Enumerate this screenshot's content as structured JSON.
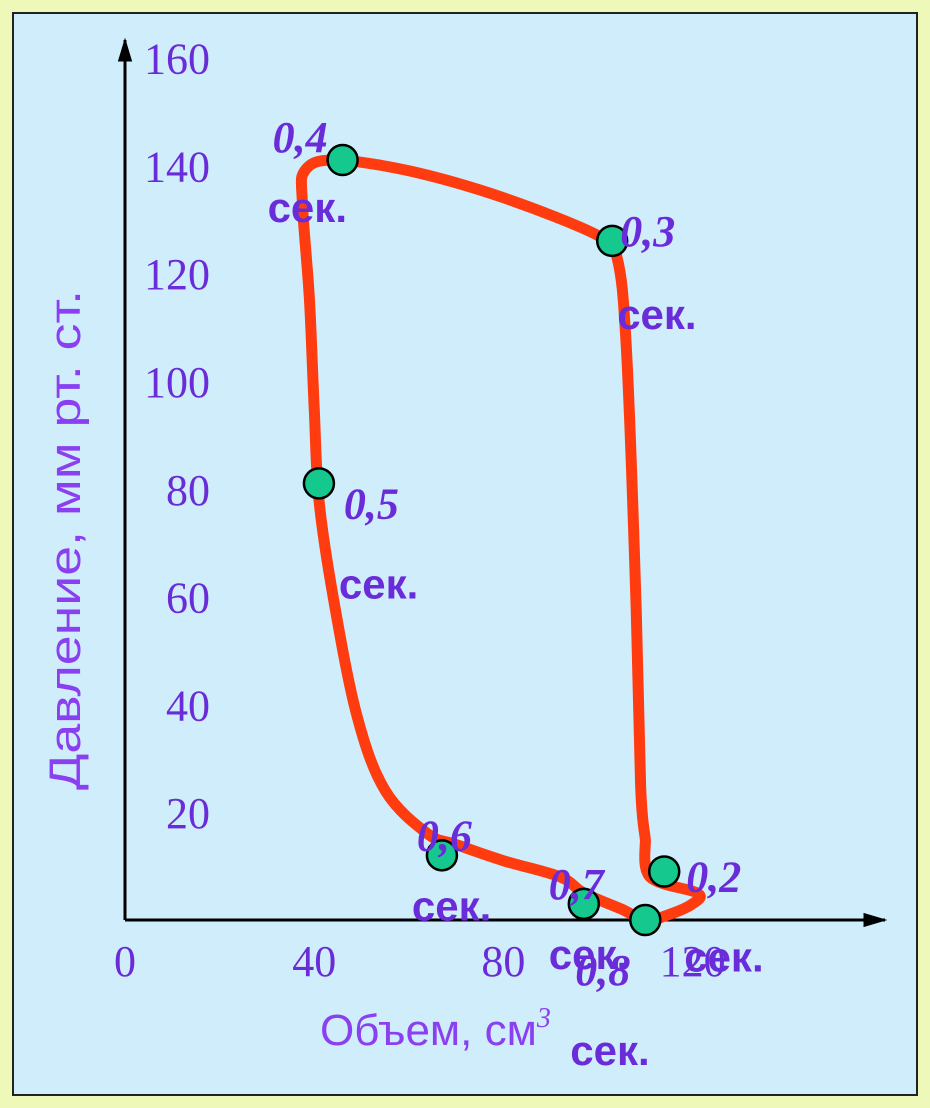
{
  "chart_data": {
    "type": "line",
    "xlabel": "Объем, см",
    "xlabel_sup": "3",
    "ylabel": "Давление, мм рт. ст.",
    "xlim": [
      0,
      140
    ],
    "ylim": [
      0,
      160
    ],
    "x_ticks": [
      "0",
      "40",
      "80",
      "120"
    ],
    "y_ticks": [
      "20",
      "40",
      "60",
      "80",
      "100",
      "120",
      "140",
      "160"
    ],
    "series": [
      {
        "color": "#ff3c10",
        "points": [
          [
            110,
            15
          ],
          [
            111,
            8
          ],
          [
            121,
            5
          ],
          [
            120,
            3
          ],
          [
            115,
            1
          ],
          [
            110,
            0
          ],
          [
            105,
            2
          ],
          [
            97,
            5
          ],
          [
            92,
            8
          ],
          [
            80,
            11
          ],
          [
            70,
            14
          ],
          [
            64,
            16
          ],
          [
            55,
            24
          ],
          [
            49,
            38
          ],
          [
            44,
            60
          ],
          [
            41,
            78
          ],
          [
            40,
            95
          ],
          [
            39,
            115
          ],
          [
            37.5,
            133
          ],
          [
            38,
            139
          ],
          [
            44,
            141
          ],
          [
            60,
            139
          ],
          [
            80,
            134
          ],
          [
            100,
            127
          ],
          [
            104,
            123
          ],
          [
            106,
            106
          ],
          [
            108,
            60
          ],
          [
            109,
            25
          ],
          [
            110,
            15
          ]
        ]
      }
    ],
    "markers": [
      {
        "x": 46,
        "y": 141,
        "t": "0,4",
        "unit": "сек."
      },
      {
        "x": 103,
        "y": 126,
        "t": "0,3",
        "unit": "сек."
      },
      {
        "x": 41,
        "y": 81,
        "t": "0,5",
        "unit": "сек."
      },
      {
        "x": 67,
        "y": 12,
        "t": "0,6",
        "unit": "сек."
      },
      {
        "x": 97,
        "y": 3,
        "t": "0,7",
        "unit": "сек."
      },
      {
        "x": 110,
        "y": 0,
        "t": "0,8",
        "unit": "сек."
      },
      {
        "x": 114,
        "y": 9,
        "t": "0,2",
        "unit": "сек."
      }
    ],
    "marker_color": "#14c88e",
    "axis_color": "#000000",
    "grid": false
  }
}
